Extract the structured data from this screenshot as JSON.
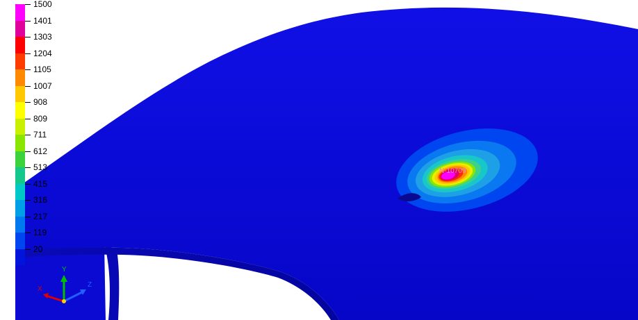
{
  "legend": {
    "title": "",
    "levels": [
      {
        "value": "1500",
        "color": "#ff00ff"
      },
      {
        "value": "1401",
        "color": "#e0009a"
      },
      {
        "value": "1303",
        "color": "#ff0000"
      },
      {
        "value": "1204",
        "color": "#ff3c00"
      },
      {
        "value": "1105",
        "color": "#ff8a00"
      },
      {
        "value": "1007",
        "color": "#ffc800"
      },
      {
        "value": "908",
        "color": "#ffff00"
      },
      {
        "value": "809",
        "color": "#c8f000"
      },
      {
        "value": "711",
        "color": "#8ae600"
      },
      {
        "value": "612",
        "color": "#3cd23c"
      },
      {
        "value": "513",
        "color": "#14c88c"
      },
      {
        "value": "415",
        "color": "#00c8c8"
      },
      {
        "value": "316",
        "color": "#00a0e6"
      },
      {
        "value": "217",
        "color": "#0078f0"
      },
      {
        "value": "119",
        "color": "#0046f0"
      },
      {
        "value": "20",
        "color": "#0014dc"
      }
    ]
  },
  "model": {
    "base_color": "#0c0cdc",
    "node_label": "N-10709"
  },
  "triad": {
    "x_label": "X",
    "y_label": "Y",
    "z_label": "Z",
    "x_color": "#e00000",
    "y_color": "#00c000",
    "z_color": "#2060ff"
  }
}
